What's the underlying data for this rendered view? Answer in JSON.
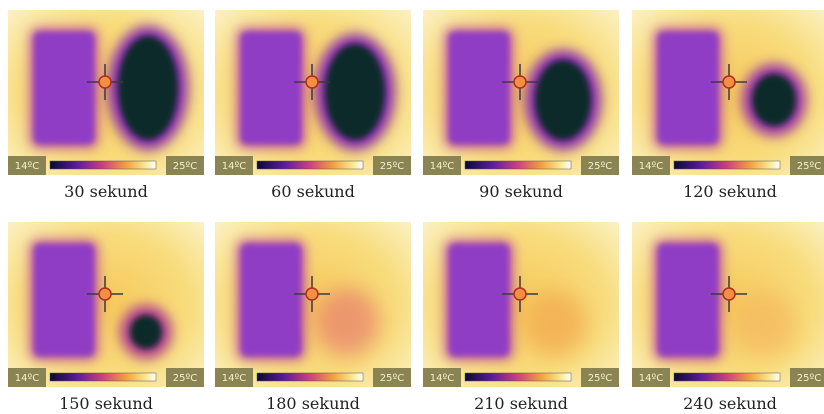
{
  "panels": [
    {
      "scale_min": "14ºC",
      "scale_max": "25ºC",
      "caption": "30 sekund"
    },
    {
      "scale_min": "14ºC",
      "scale_max": "25ºC",
      "caption": "60 sekund"
    },
    {
      "scale_min": "14ºC",
      "scale_max": "25ºC",
      "caption": "90 sekund"
    },
    {
      "scale_min": "14ºC",
      "scale_max": "25ºC",
      "caption": "120 sekund"
    },
    {
      "scale_min": "14ºC",
      "scale_max": "25ºC",
      "caption": "150 sekund"
    },
    {
      "scale_min": "14ºC",
      "scale_max": "25ºC",
      "caption": "180 sekund"
    },
    {
      "scale_min": "14ºC",
      "scale_max": "25ºC",
      "caption": "210 sekund"
    },
    {
      "scale_min": "14ºC",
      "scale_max": "25ºC",
      "caption": "240 sekund"
    }
  ]
}
